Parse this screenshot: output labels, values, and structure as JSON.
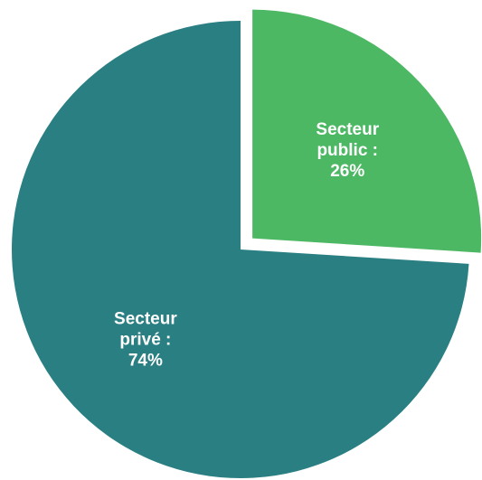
{
  "chart_data": {
    "type": "pie",
    "title": "",
    "slices": [
      {
        "label": [
          "Secteur",
          "public :",
          "26%"
        ],
        "value": 26,
        "color": "#4db864",
        "exploded": true
      },
      {
        "label": [
          "Secteur",
          "privé :",
          "74%"
        ],
        "value": 74,
        "color": "#2a7f83",
        "exploded": false
      }
    ],
    "start_angle_deg": 0,
    "direction": "clockwise",
    "legend": "none"
  }
}
